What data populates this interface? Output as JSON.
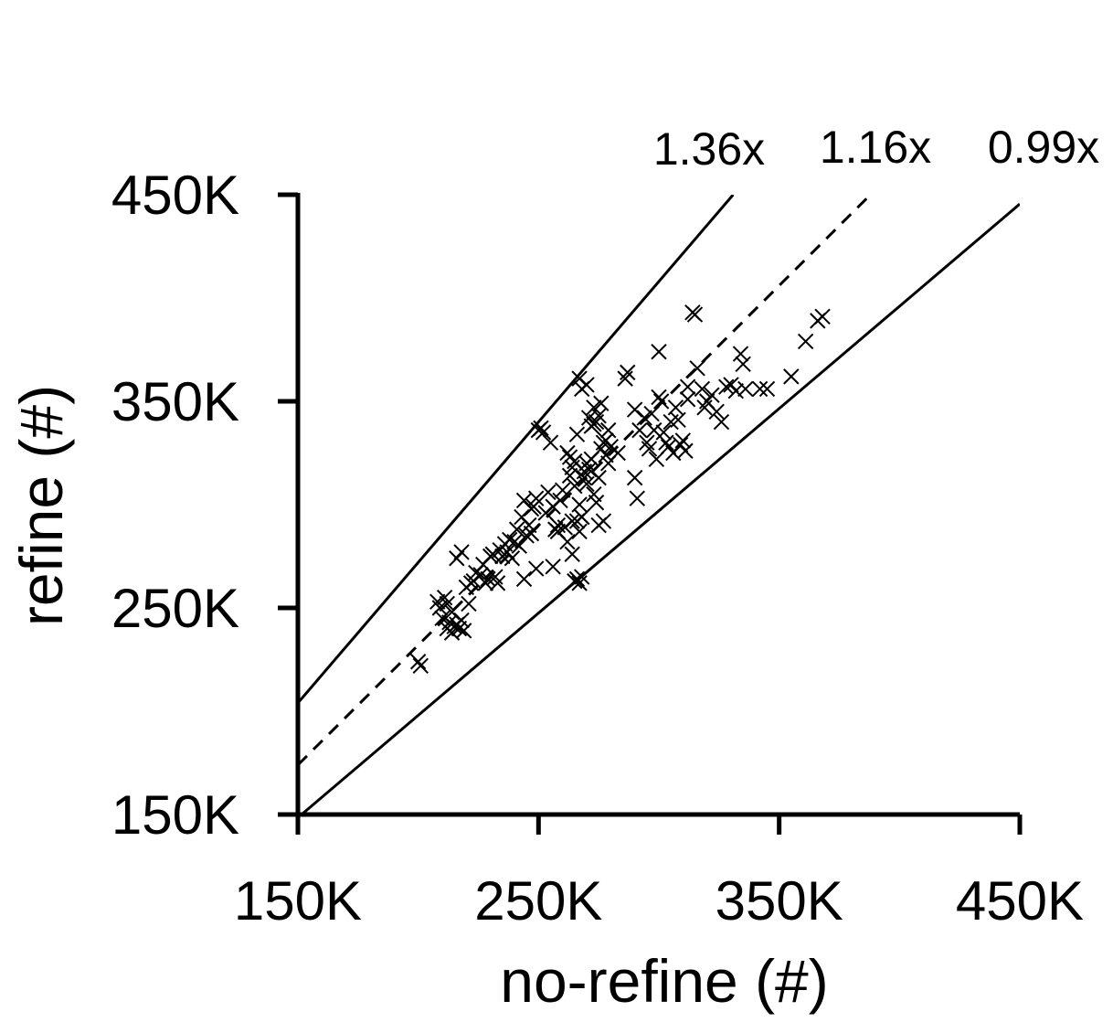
{
  "chart_data": {
    "type": "scatter",
    "title": "",
    "xlabel": "no-refine (#)",
    "ylabel": "refine (#)",
    "xlim": [
      150000,
      450000
    ],
    "ylim": [
      150000,
      450000
    ],
    "x_ticks": [
      150000,
      250000,
      350000,
      450000
    ],
    "y_ticks": [
      150000,
      250000,
      350000,
      450000
    ],
    "x_tick_labels": [
      "150K",
      "250K",
      "350K",
      "450K"
    ],
    "y_tick_labels": [
      "150K",
      "250K",
      "350K",
      "450K"
    ],
    "grid": false,
    "marker": "x",
    "reference_lines": [
      {
        "label": "1.36x",
        "slope": 1.36,
        "style": "solid"
      },
      {
        "label": "1.16x",
        "slope": 1.16,
        "style": "dashed"
      },
      {
        "label": "0.99x",
        "slope": 0.99,
        "style": "solid"
      }
    ],
    "points": [
      [
        200,
        224
      ],
      [
        201,
        222
      ],
      [
        208,
        253
      ],
      [
        209,
        250
      ],
      [
        210,
        245
      ],
      [
        211,
        255
      ],
      [
        212,
        240
      ],
      [
        213,
        243
      ],
      [
        214,
        238
      ],
      [
        215,
        241
      ],
      [
        216,
        242
      ],
      [
        217,
        240
      ],
      [
        218,
        244
      ],
      [
        219,
        239
      ],
      [
        212,
        252
      ],
      [
        214,
        248
      ],
      [
        216,
        274
      ],
      [
        218,
        277
      ],
      [
        220,
        260
      ],
      [
        221,
        252
      ],
      [
        222,
        262
      ],
      [
        223,
        263
      ],
      [
        224,
        267
      ],
      [
        226,
        266
      ],
      [
        227,
        271
      ],
      [
        228,
        262
      ],
      [
        229,
        264
      ],
      [
        230,
        275
      ],
      [
        231,
        276
      ],
      [
        232,
        265
      ],
      [
        233,
        262
      ],
      [
        234,
        278
      ],
      [
        235,
        275
      ],
      [
        236,
        281
      ],
      [
        237,
        277
      ],
      [
        238,
        283
      ],
      [
        239,
        274
      ],
      [
        240,
        282
      ],
      [
        241,
        288
      ],
      [
        242,
        280
      ],
      [
        243,
        294
      ],
      [
        244,
        302
      ],
      [
        245,
        285
      ],
      [
        246,
        290
      ],
      [
        247,
        286
      ],
      [
        248,
        299
      ],
      [
        249,
        303
      ],
      [
        250,
        336
      ],
      [
        251,
        337
      ],
      [
        252,
        335
      ],
      [
        253,
        296
      ],
      [
        254,
        306
      ],
      [
        255,
        330
      ],
      [
        256,
        299
      ],
      [
        257,
        288
      ],
      [
        258,
        290
      ],
      [
        259,
        302
      ],
      [
        260,
        307
      ],
      [
        261,
        289
      ],
      [
        262,
        282
      ],
      [
        263,
        314
      ],
      [
        264,
        292
      ],
      [
        265,
        309
      ],
      [
        266,
        292
      ],
      [
        267,
        287
      ],
      [
        268,
        294
      ],
      [
        269,
        316
      ],
      [
        270,
        310
      ],
      [
        271,
        317
      ],
      [
        272,
        322
      ],
      [
        273,
        305
      ],
      [
        274,
        301
      ],
      [
        275,
        313
      ],
      [
        276,
        327
      ],
      [
        277,
        292
      ],
      [
        278,
        331
      ],
      [
        279,
        336
      ],
      [
        280,
        328
      ],
      [
        262,
        325
      ],
      [
        263,
        323
      ],
      [
        264,
        318
      ],
      [
        265,
        321
      ],
      [
        266,
        334
      ],
      [
        267,
        300
      ],
      [
        268,
        294
      ],
      [
        269,
        313
      ],
      [
        270,
        320
      ],
      [
        271,
        342
      ],
      [
        272,
        338
      ],
      [
        273,
        339
      ],
      [
        274,
        340
      ],
      [
        275,
        343
      ],
      [
        276,
        349
      ],
      [
        277,
        330
      ],
      [
        278,
        324
      ],
      [
        279,
        320
      ],
      [
        267,
        361
      ],
      [
        268,
        356
      ],
      [
        270,
        358
      ],
      [
        265,
        263
      ],
      [
        266,
        264
      ],
      [
        267,
        262
      ],
      [
        268,
        265
      ],
      [
        286,
        361
      ],
      [
        287,
        364
      ],
      [
        290,
        313
      ],
      [
        291,
        303
      ],
      [
        292,
        336
      ],
      [
        294,
        342
      ],
      [
        295,
        330
      ],
      [
        296,
        327
      ],
      [
        297,
        344
      ],
      [
        298,
        336
      ],
      [
        299,
        322
      ],
      [
        300,
        352
      ],
      [
        301,
        350
      ],
      [
        302,
        335
      ],
      [
        303,
        330
      ],
      [
        304,
        328
      ],
      [
        305,
        340
      ],
      [
        306,
        325
      ],
      [
        307,
        347
      ],
      [
        308,
        341
      ],
      [
        309,
        329
      ],
      [
        310,
        331
      ],
      [
        311,
        326
      ],
      [
        312,
        357
      ],
      [
        314,
        393
      ],
      [
        315,
        392
      ],
      [
        316,
        366
      ],
      [
        318,
        356
      ],
      [
        320,
        350
      ],
      [
        322,
        353
      ],
      [
        324,
        345
      ],
      [
        326,
        340
      ],
      [
        328,
        357
      ],
      [
        330,
        358
      ],
      [
        332,
        355
      ],
      [
        334,
        373
      ],
      [
        335,
        368
      ],
      [
        336,
        356
      ],
      [
        342,
        356
      ],
      [
        345,
        356
      ],
      [
        355,
        362
      ],
      [
        361,
        379
      ],
      [
        366,
        389
      ],
      [
        368,
        391
      ],
      [
        249,
        269
      ],
      [
        256,
        270
      ],
      [
        244,
        264
      ],
      [
        247,
        298
      ],
      [
        258,
        287
      ],
      [
        264,
        276
      ],
      [
        273,
        347
      ],
      [
        275,
        290
      ],
      [
        283,
        325
      ],
      [
        300,
        374
      ],
      [
        312,
        351
      ],
      [
        319,
        347
      ],
      [
        290,
        346
      ]
    ]
  }
}
